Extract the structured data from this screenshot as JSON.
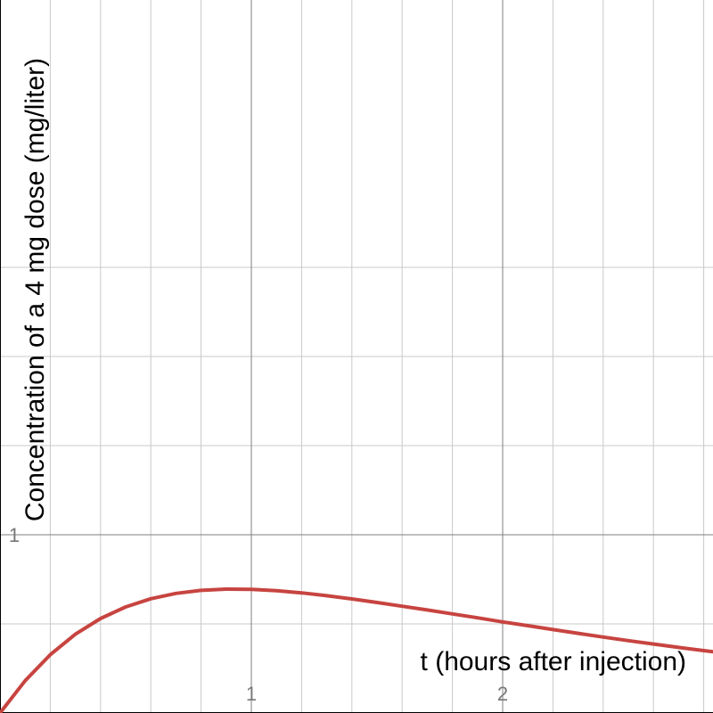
{
  "chart_data": {
    "type": "line",
    "xlabel": "t (hours after injection)",
    "ylabel": "Concentration of a 4 mg dose (mg/liter)",
    "xlim": [
      0,
      2.84
    ],
    "ylim": [
      0,
      2.5
    ],
    "x_major_ticks": [
      1,
      2
    ],
    "y_major_ticks": [
      1
    ],
    "x_tick_labels": [
      "1",
      "2"
    ],
    "y_tick_labels": [
      "1"
    ],
    "x_minor_step": 0.2,
    "y_minor_step": 0.5,
    "grid": true,
    "series": [
      {
        "color": "#c74440",
        "x": [
          0,
          0.1,
          0.2,
          0.3,
          0.4,
          0.5,
          0.6,
          0.7,
          0.8,
          0.9,
          1.0,
          1.1,
          1.2,
          1.3,
          1.4,
          1.5,
          1.6,
          1.7,
          1.8,
          1.9,
          2.0,
          2.1,
          2.2,
          2.3,
          2.4,
          2.5,
          2.6,
          2.7,
          2.8,
          2.84
        ],
        "y": [
          0,
          0.181,
          0.327,
          0.442,
          0.53,
          0.595,
          0.641,
          0.671,
          0.688,
          0.695,
          0.694,
          0.686,
          0.674,
          0.658,
          0.64,
          0.62,
          0.599,
          0.578,
          0.556,
          0.534,
          0.511,
          0.49,
          0.468,
          0.447,
          0.426,
          0.406,
          0.387,
          0.368,
          0.35,
          0.343
        ]
      }
    ]
  }
}
